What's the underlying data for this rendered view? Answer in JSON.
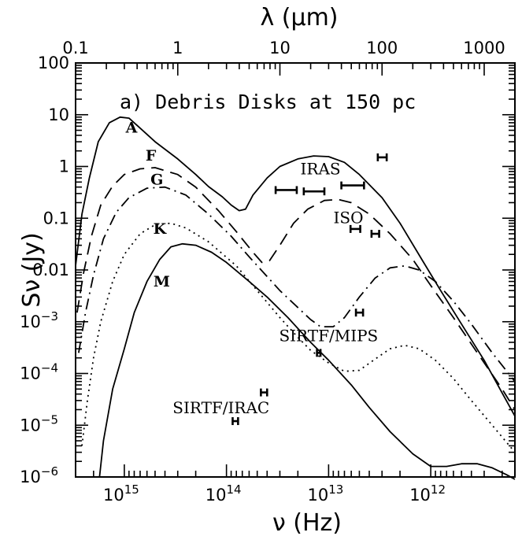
{
  "chart_data": {
    "type": "line",
    "title": "a)  Debris Disks at 150 pc",
    "xlabel_bottom": "ν (Hz)",
    "xlabel_top": "λ (μm)",
    "ylabel": "Sν (Jy)",
    "x_scale": "log",
    "x_reversed": true,
    "xlim_hz": [
      3000000000000000.0,
      150000000000.0
    ],
    "x_ticks_bottom": [
      {
        "value": 1000000000000000.0,
        "label": "10",
        "exp": "15"
      },
      {
        "value": 100000000000000.0,
        "label": "10",
        "exp": "14"
      },
      {
        "value": 10000000000000.0,
        "label": "10",
        "exp": "13"
      },
      {
        "value": 1000000000000.0,
        "label": "10",
        "exp": "12"
      }
    ],
    "x_ticks_top_um": [
      {
        "value": 0.1,
        "label": "0.1"
      },
      {
        "value": 1,
        "label": "1"
      },
      {
        "value": 10,
        "label": "10"
      },
      {
        "value": 100,
        "label": "100"
      },
      {
        "value": 1000,
        "label": "1000"
      }
    ],
    "y_scale": "log",
    "ylim": [
      1e-06,
      100
    ],
    "y_ticks": [
      {
        "value": 100,
        "label": "100",
        "exp": ""
      },
      {
        "value": 10,
        "label": "10",
        "exp": ""
      },
      {
        "value": 1,
        "label": "1",
        "exp": ""
      },
      {
        "value": 0.1,
        "label": "0.1",
        "exp": ""
      },
      {
        "value": 0.01,
        "label": "0.01",
        "exp": ""
      },
      {
        "value": 0.001,
        "label": "10",
        "exp": "−3"
      },
      {
        "value": 0.0001,
        "label": "10",
        "exp": "−4"
      },
      {
        "value": 1e-05,
        "label": "10",
        "exp": "−5"
      },
      {
        "value": 1e-06,
        "label": "10",
        "exp": "−6"
      }
    ],
    "series": [
      {
        "name": "A",
        "style": "solid",
        "label_at": [
          850000000000000.0,
          4.5
        ],
        "points": [
          [
            3000000000000000.0,
            0.012
          ],
          [
            2600000000000000.0,
            0.12
          ],
          [
            2200000000000000.0,
            0.6
          ],
          [
            1800000000000000.0,
            3
          ],
          [
            1400000000000000.0,
            7
          ],
          [
            1100000000000000.0,
            9
          ],
          [
            900000000000000.0,
            8.6
          ],
          [
            700000000000000.0,
            5.5
          ],
          [
            500000000000000.0,
            3
          ],
          [
            300000000000000.0,
            1.4
          ],
          [
            200000000000000.0,
            0.7
          ],
          [
            150000000000000.0,
            0.41
          ],
          [
            110000000000000.0,
            0.26
          ],
          [
            90000000000000.0,
            0.18
          ],
          [
            75000000000000.0,
            0.14
          ],
          [
            65000000000000.0,
            0.15
          ],
          [
            55000000000000.0,
            0.28
          ],
          [
            40000000000000.0,
            0.6
          ],
          [
            30000000000000.0,
            1.0
          ],
          [
            20000000000000.0,
            1.4
          ],
          [
            14000000000000.0,
            1.6
          ],
          [
            10000000000000.0,
            1.55
          ],
          [
            7000000000000.0,
            1.2
          ],
          [
            5000000000000.0,
            0.7
          ],
          [
            3000000000000.0,
            0.25
          ],
          [
            2000000000000.0,
            0.08
          ],
          [
            1200000000000.0,
            0.015
          ],
          [
            800000000000.0,
            0.004
          ],
          [
            500000000000.0,
            0.0009
          ],
          [
            300000000000.0,
            0.00018
          ],
          [
            150000000000.0,
            1.5e-05
          ]
        ]
      },
      {
        "name": "F",
        "style": "dashed",
        "label_at": [
          550000000000000.0,
          1.3
        ],
        "points": [
          [
            2900000000000000.0,
            0.0015
          ],
          [
            2500000000000000.0,
            0.009
          ],
          [
            2100000000000000.0,
            0.045
          ],
          [
            1700000000000000.0,
            0.18
          ],
          [
            1300000000000000.0,
            0.42
          ],
          [
            1000000000000000.0,
            0.7
          ],
          [
            700000000000000.0,
            0.9
          ],
          [
            500000000000000.0,
            0.95
          ],
          [
            300000000000000.0,
            0.7
          ],
          [
            200000000000000.0,
            0.4
          ],
          [
            120000000000000.0,
            0.14
          ],
          [
            80000000000000.0,
            0.055
          ],
          [
            55000000000000.0,
            0.022
          ],
          [
            45000000000000.0,
            0.014
          ],
          [
            38000000000000.0,
            0.015
          ],
          [
            30000000000000.0,
            0.03
          ],
          [
            22000000000000.0,
            0.08
          ],
          [
            16000000000000.0,
            0.15
          ],
          [
            11000000000000.0,
            0.22
          ],
          [
            8000000000000.0,
            0.23
          ],
          [
            6000000000000.0,
            0.2
          ],
          [
            4000000000000.0,
            0.12
          ],
          [
            2500000000000.0,
            0.05
          ],
          [
            1500000000000.0,
            0.016
          ],
          [
            1000000000000.0,
            0.005
          ],
          [
            600000000000.0,
            0.0012
          ],
          [
            350000000000.0,
            0.00025
          ],
          [
            200000000000.0,
            5e-05
          ],
          [
            150000000000.0,
            2e-05
          ]
        ]
      },
      {
        "name": "G",
        "style": "dashdot",
        "label_at": [
          480000000000000.0,
          0.45
        ],
        "points": [
          [
            2800000000000000.0,
            0.00025
          ],
          [
            2400000000000000.0,
            0.0015
          ],
          [
            2000000000000000.0,
            0.008
          ],
          [
            1600000000000000.0,
            0.04
          ],
          [
            1200000000000000.0,
            0.13
          ],
          [
            900000000000000.0,
            0.25
          ],
          [
            600000000000000.0,
            0.38
          ],
          [
            400000000000000.0,
            0.4
          ],
          [
            250000000000000.0,
            0.28
          ],
          [
            150000000000000.0,
            0.12
          ],
          [
            90000000000000.0,
            0.045
          ],
          [
            60000000000000.0,
            0.018
          ],
          [
            30000000000000.0,
            0.004
          ],
          [
            15000000000000.0,
            0.0011
          ],
          [
            12000000000000.0,
            0.0008
          ],
          [
            9000000000000.0,
            0.0008
          ],
          [
            7000000000000.0,
            0.0012
          ],
          [
            5000000000000.0,
            0.003
          ],
          [
            3500000000000.0,
            0.007
          ],
          [
            2500000000000.0,
            0.011
          ],
          [
            1800000000000.0,
            0.012
          ],
          [
            1300000000000.0,
            0.01
          ],
          [
            900000000000.0,
            0.006
          ],
          [
            600000000000.0,
            0.0025
          ],
          [
            400000000000.0,
            0.0009
          ],
          [
            250000000000.0,
            0.00025
          ],
          [
            150000000000.0,
            7e-05
          ]
        ]
      },
      {
        "name": "K",
        "style": "dotted",
        "label_at": [
          450000000000000.0,
          0.05
        ],
        "points": [
          [
            2600000000000000.0,
            4e-06
          ],
          [
            2300000000000000.0,
            3e-05
          ],
          [
            2000000000000000.0,
            0.0002
          ],
          [
            1700000000000000.0,
            0.001
          ],
          [
            1300000000000000.0,
            0.006
          ],
          [
            1000000000000000.0,
            0.02
          ],
          [
            700000000000000.0,
            0.05
          ],
          [
            500000000000000.0,
            0.075
          ],
          [
            350000000000000.0,
            0.08
          ],
          [
            250000000000000.0,
            0.065
          ],
          [
            150000000000000.0,
            0.035
          ],
          [
            80000000000000.0,
            0.012
          ],
          [
            50000000000000.0,
            0.004
          ],
          [
            30000000000000.0,
            0.0012
          ],
          [
            20000000000000.0,
            0.0005
          ],
          [
            15000000000000.0,
            0.00028
          ],
          [
            10000000000000.0,
            0.00016
          ],
          [
            7000000000000.0,
            0.00011
          ],
          [
            5000000000000.0,
            0.000115
          ],
          [
            3500000000000.0,
            0.00019
          ],
          [
            2500000000000.0,
            0.0003
          ],
          [
            1800000000000.0,
            0.00035
          ],
          [
            1300000000000.0,
            0.0003
          ],
          [
            900000000000.0,
            0.00018
          ],
          [
            600000000000.0,
            8e-05
          ],
          [
            400000000000.0,
            3e-05
          ],
          [
            250000000000.0,
            1e-05
          ],
          [
            150000000000.0,
            3e-06
          ]
        ]
      },
      {
        "name": "M",
        "style": "solid",
        "label_at": [
          430000000000000.0,
          0.0048
        ],
        "points": [
          [
            1750000000000000.0,
            1e-06
          ],
          [
            1600000000000000.0,
            5e-06
          ],
          [
            1300000000000000.0,
            5e-05
          ],
          [
            1000000000000000.0,
            0.0003
          ],
          [
            800000000000000.0,
            0.0015
          ],
          [
            600000000000000.0,
            0.006
          ],
          [
            450000000000000.0,
            0.016
          ],
          [
            350000000000000.0,
            0.028
          ],
          [
            270000000000000.0,
            0.032
          ],
          [
            200000000000000.0,
            0.03
          ],
          [
            140000000000000.0,
            0.022
          ],
          [
            100000000000000.0,
            0.014
          ],
          [
            60000000000000.0,
            0.006
          ],
          [
            40000000000000.0,
            0.003
          ],
          [
            25000000000000.0,
            0.0012
          ],
          [
            15000000000000.0,
            0.0004
          ],
          [
            10000000000000.0,
            0.00018
          ],
          [
            6000000000000.0,
            6e-05
          ],
          [
            4000000000000.0,
            2.2e-05
          ],
          [
            2500000000000.0,
            7.5e-06
          ],
          [
            1500000000000.0,
            2.8e-06
          ],
          [
            1000000000000.0,
            1.6e-06
          ],
          [
            700000000000.0,
            1.6e-06
          ],
          [
            500000000000.0,
            1.8e-06
          ],
          [
            350000000000.0,
            1.8e-06
          ],
          [
            250000000000.0,
            1.5e-06
          ],
          [
            180000000000.0,
            1.1e-06
          ],
          [
            150000000000.0,
            9e-07
          ]
        ]
      }
    ],
    "error_bars": [
      {
        "group": "IRAS",
        "x": [
          33000000000000.0,
          20500000000000.0
        ],
        "y": 0.35
      },
      {
        "group": "IRAS",
        "x": [
          17500000000000.0,
          11000000000000.0
        ],
        "y": 0.33
      },
      {
        "group": "IRAS",
        "x": [
          7500000000000.0,
          4500000000000.0
        ],
        "y": 0.43
      },
      {
        "group": "IRAS",
        "x": [
          3300000000000.0,
          2700000000000.0
        ],
        "y": 1.5
      },
      {
        "group": "ISO",
        "x": [
          6100000000000.0,
          4900000000000.0
        ],
        "y": 0.062
      },
      {
        "group": "ISO",
        "x": [
          3800000000000.0,
          3200000000000.0
        ],
        "y": 0.05
      },
      {
        "group": "SIRTF/MIPS",
        "x": [
          13000000000000.0,
          12000000000000.0
        ],
        "y": 0.00025
      },
      {
        "group": "SIRTF/MIPS",
        "x": [
          5400000000000.0,
          4600000000000.0
        ],
        "y": 0.0015
      },
      {
        "group": "SIRTF/IRAC",
        "x": [
          87000000000000.0,
          77000000000000.0
        ],
        "y": 1.2e-05
      },
      {
        "group": "SIRTF/IRAC",
        "x": [
          46000000000000.0,
          40000000000000.0
        ],
        "y": 4.3e-05
      }
    ],
    "instrument_labels": [
      {
        "text": "IRAS",
        "x": 12000000000000.0,
        "y": 0.7
      },
      {
        "text": "ISO",
        "x": 6400000000000.0,
        "y": 0.08
      },
      {
        "text": "SIRTF/MIPS",
        "x": 10000000000000.0,
        "y": 0.00042
      },
      {
        "text": "SIRTF/IRAC",
        "x": 113000000000000.0,
        "y": 1.7e-05
      }
    ]
  }
}
